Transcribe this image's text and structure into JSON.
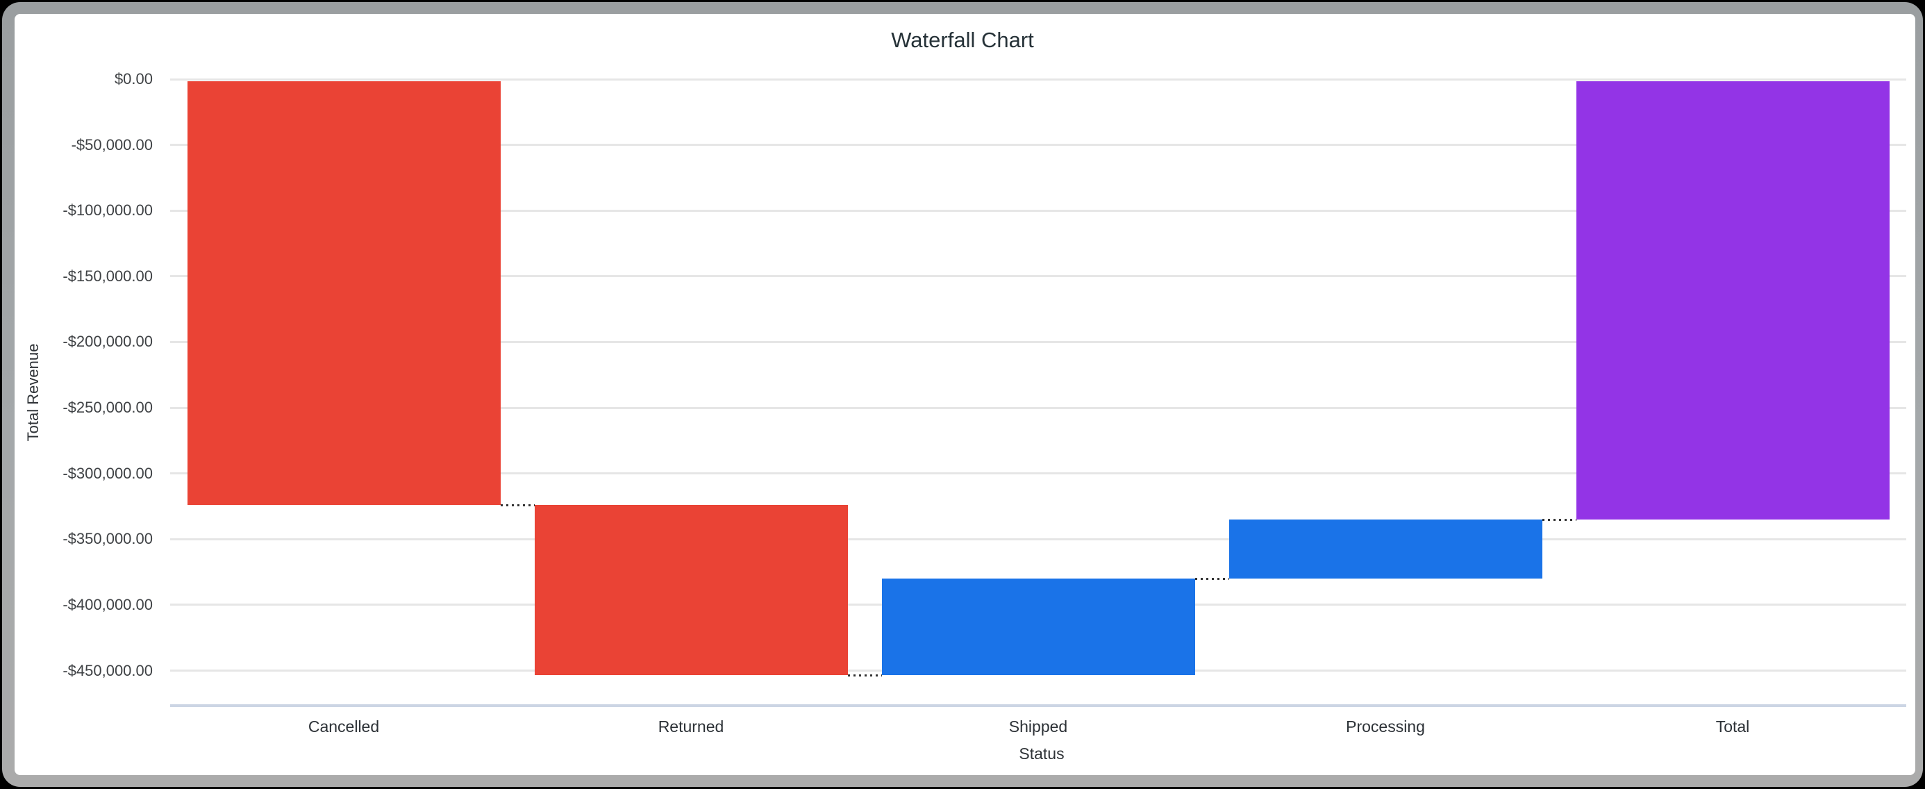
{
  "chart_data": {
    "type": "waterfall",
    "title": "Waterfall Chart",
    "xlabel": "Status",
    "ylabel": "Total Revenue",
    "categories": [
      "Cancelled",
      "Returned",
      "Shipped",
      "Processing",
      "Total"
    ],
    "kinds": [
      "delta",
      "delta",
      "delta",
      "delta",
      "total"
    ],
    "values": [
      -324000,
      -129600,
      73500,
      45000,
      -335100
    ],
    "cumulative": [
      -324000,
      -453600,
      -380100,
      -335100,
      -335100
    ],
    "y_ticks": [
      {
        "value": 0,
        "label": "$0.00"
      },
      {
        "value": -50000,
        "label": "-$50,000.00"
      },
      {
        "value": -100000,
        "label": "-$100,000.00"
      },
      {
        "value": -150000,
        "label": "-$150,000.00"
      },
      {
        "value": -200000,
        "label": "-$200,000.00"
      },
      {
        "value": -250000,
        "label": "-$250,000.00"
      },
      {
        "value": -300000,
        "label": "-$300,000.00"
      },
      {
        "value": -350000,
        "label": "-$350,000.00"
      },
      {
        "value": -400000,
        "label": "-$400,000.00"
      },
      {
        "value": -450000,
        "label": "-$450,000.00"
      }
    ],
    "ylim": [
      -476000,
      0
    ],
    "legend": "none",
    "gridlines": "horizontal",
    "colors": {
      "negative": "#ea4335",
      "positive": "#1a73e8",
      "total": "#9334e6",
      "gridline": "#e6e6e6",
      "baseline": "#ccd5e4",
      "connector": "#333333"
    }
  }
}
